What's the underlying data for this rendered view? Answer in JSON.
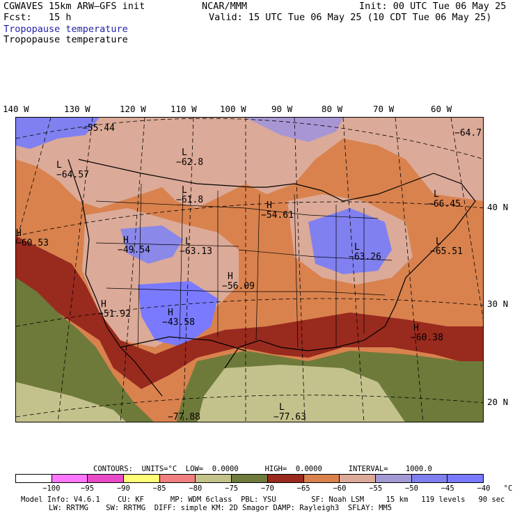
{
  "header": {
    "model_line": "CGWAVES 15km ARW–GFS init",
    "org": "NCAR/MMM",
    "init": "Init: 00 UTC Tue 06 May 25",
    "fcst": "Fcst:   15 h",
    "valid": "Valid: 15 UTC Tue 06 May 25 (10 CDT Tue 06 May 25)",
    "field_shaded": "Tropopause temperature",
    "field_contour": "Tropopause temperature"
  },
  "axes": {
    "lon_labels": [
      "140 W",
      "130 W",
      "120 W",
      "110 W",
      "100 W",
      "90 W",
      "80 W",
      "70 W",
      "60 W"
    ],
    "lat_labels": [
      "40 N",
      "30 N",
      "20 N"
    ]
  },
  "map": {
    "extrema": [
      {
        "type": "",
        "value": "−55.44"
      },
      {
        "type": "L",
        "value": "−64.57"
      },
      {
        "type": "L",
        "value": "−62.8"
      },
      {
        "type": "L",
        "value": "−61.8"
      },
      {
        "type": "H",
        "value": "−54.61"
      },
      {
        "type": "L",
        "value": "−66.45"
      },
      {
        "type": "",
        "value": "−64.7"
      },
      {
        "type": "H",
        "value": "−60.53"
      },
      {
        "type": "H",
        "value": "−49.54"
      },
      {
        "type": "L",
        "value": "−63.13"
      },
      {
        "type": "L",
        "value": "−63.26"
      },
      {
        "type": "L",
        "value": "−65.51"
      },
      {
        "type": "H",
        "value": "−56.09"
      },
      {
        "type": "H",
        "value": "−51.92"
      },
      {
        "type": "H",
        "value": "−43.58"
      },
      {
        "type": "H",
        "value": "−60.38"
      },
      {
        "type": "",
        "value": "−77.88"
      },
      {
        "type": "L",
        "value": "−77.63"
      }
    ],
    "colors": {
      "lt_minus70": "#6e7a3a",
      "minus70_65": "#992a1e",
      "minus65_60": "#d9824e",
      "minus60_55": "#dcaa98",
      "minus55_50": "#a896d4",
      "minus50_45": "#8080f0",
      "minus45_40": "#7a7aff",
      "minus75_70": "#c4c28c"
    }
  },
  "contour_info": {
    "contours": "CONTOURS:",
    "units": "UNITS=°C",
    "low": "LOW=  0.0000",
    "high": "HIGH=  0.0000",
    "interval": "INTERVAL=    1000.0"
  },
  "colorbar": {
    "colors": [
      "#ffffff",
      "#ff77ff",
      "#e84ac8",
      "#ffff77",
      "#f08080",
      "#c2c28a",
      "#6e7b3c",
      "#992a1e",
      "#d9824e",
      "#dcaa98",
      "#a39ad4",
      "#7f7ff0",
      "#7a7aff"
    ],
    "ticks": [
      "−100",
      "−95",
      "−90",
      "−85",
      "−80",
      "−75",
      "−70",
      "−65",
      "−60",
      "−55",
      "−50",
      "−45",
      "−40",
      "°C"
    ]
  },
  "footer": {
    "line1": "Model Info: V4.6.1    CU: KF      MP: WDM 6class  PBL: YSU        SF: Noah LSM     15 km   119 levels   90 sec",
    "line2": "LW: RRTMG    SW: RRTMG  DIFF: simple KM: 2D Smagor DAMP: Rayleigh3  SFLAY: MM5"
  }
}
